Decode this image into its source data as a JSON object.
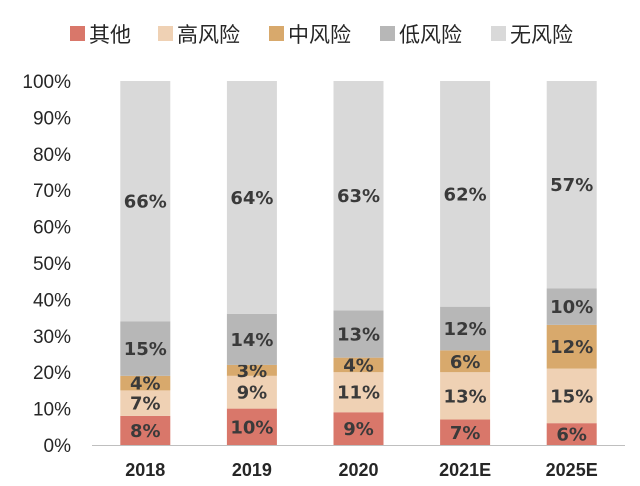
{
  "chart_data": {
    "type": "bar",
    "stacked": true,
    "categories": [
      "2018",
      "2019",
      "2020",
      "2021E",
      "2025E"
    ],
    "series": [
      {
        "name": "其他",
        "color": "#D9776A",
        "values": [
          8,
          10,
          9,
          7,
          6
        ]
      },
      {
        "name": "高风险",
        "color": "#EFD1B4",
        "values": [
          7,
          9,
          11,
          13,
          15
        ]
      },
      {
        "name": "中风险",
        "color": "#D8A96C",
        "values": [
          4,
          3,
          4,
          6,
          12
        ]
      },
      {
        "name": "低风险",
        "color": "#B7B7B7",
        "values": [
          15,
          14,
          13,
          12,
          10
        ]
      },
      {
        "name": "无风险",
        "color": "#D9D9D9",
        "values": [
          66,
          64,
          63,
          62,
          57
        ]
      }
    ],
    "title": "",
    "xlabel": "",
    "ylabel": "",
    "ylim": [
      0,
      100
    ],
    "y_ticks": [
      "0%",
      "10%",
      "20%",
      "30%",
      "40%",
      "50%",
      "60%",
      "70%",
      "80%",
      "90%",
      "100%"
    ],
    "label_suffix": "%",
    "legend_position": "top",
    "grid": false
  }
}
